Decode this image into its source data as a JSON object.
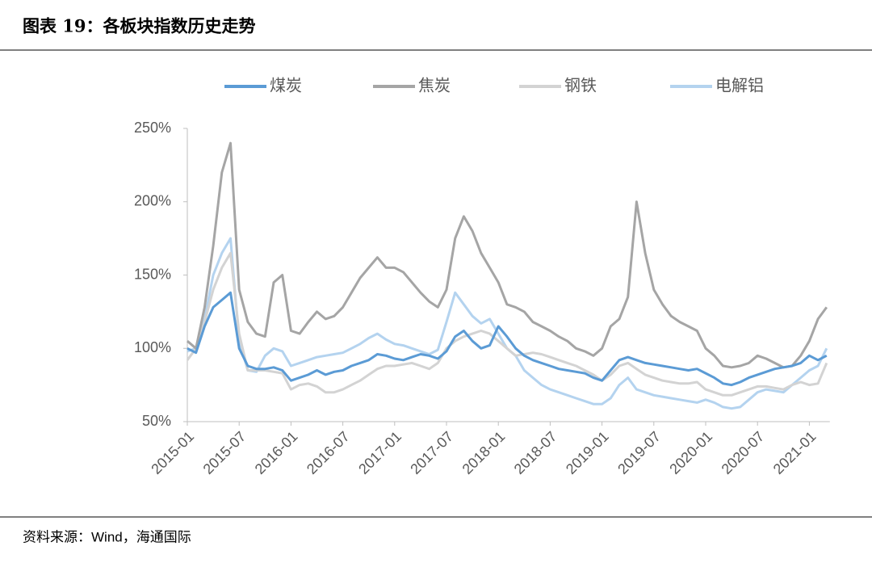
{
  "chart_data": {
    "type": "line",
    "title": "图表 19：各板块指数历史走势",
    "source": "资料来源：Wind，海通国际",
    "categories": [
      "2015-01",
      null,
      null,
      null,
      null,
      null,
      "2015-07",
      null,
      null,
      null,
      null,
      null,
      "2016-01",
      null,
      null,
      null,
      null,
      null,
      "2016-07",
      null,
      null,
      null,
      null,
      null,
      "2017-01",
      null,
      null,
      null,
      null,
      null,
      "2017-07",
      null,
      null,
      null,
      null,
      null,
      "2018-01",
      null,
      null,
      null,
      null,
      null,
      "2018-07",
      null,
      null,
      null,
      null,
      null,
      "2019-01",
      null,
      null,
      null,
      null,
      null,
      "2019-07",
      null,
      null,
      null,
      null,
      null,
      "2020-01",
      null,
      null,
      null,
      null,
      null,
      "2020-07",
      null,
      null,
      null,
      null,
      null,
      "2021-01",
      null,
      null
    ],
    "ylim": [
      50,
      250
    ],
    "yticks": [
      {
        "value": 50,
        "label": "50%"
      },
      {
        "value": 100,
        "label": "100%"
      },
      {
        "value": 150,
        "label": "150%"
      },
      {
        "value": 200,
        "label": "200%"
      },
      {
        "value": 250,
        "label": "250%"
      }
    ],
    "legend": "top",
    "series": [
      {
        "name": "煤炭",
        "color": "#5b9bd5",
        "values": [
          100,
          97,
          115,
          128,
          133,
          138,
          100,
          88,
          86,
          86,
          87,
          85,
          78,
          80,
          82,
          85,
          82,
          84,
          85,
          88,
          90,
          92,
          96,
          95,
          93,
          92,
          94,
          96,
          95,
          93,
          98,
          108,
          112,
          105,
          100,
          102,
          115,
          108,
          100,
          95,
          92,
          90,
          88,
          86,
          85,
          84,
          83,
          80,
          78,
          85,
          92,
          94,
          92,
          90,
          89,
          88,
          87,
          86,
          85,
          86,
          83,
          80,
          76,
          75,
          77,
          80,
          82,
          84,
          86,
          87,
          88,
          90,
          95,
          92,
          95
        ]
      },
      {
        "name": "焦炭",
        "color": "#a5a5a5",
        "values": [
          105,
          100,
          128,
          170,
          220,
          240,
          140,
          118,
          110,
          108,
          145,
          150,
          112,
          110,
          118,
          125,
          120,
          122,
          128,
          138,
          148,
          155,
          162,
          155,
          155,
          152,
          145,
          138,
          132,
          128,
          140,
          175,
          190,
          180,
          165,
          155,
          145,
          130,
          128,
          125,
          118,
          115,
          112,
          108,
          105,
          100,
          98,
          95,
          100,
          115,
          120,
          135,
          200,
          165,
          140,
          130,
          122,
          118,
          115,
          112,
          100,
          95,
          88,
          87,
          88,
          90,
          95,
          93,
          90,
          87,
          88,
          95,
          105,
          120,
          128
        ]
      },
      {
        "name": "钢铁",
        "color": "#d3d3d3",
        "values": [
          92,
          100,
          118,
          140,
          155,
          165,
          110,
          85,
          85,
          85,
          84,
          83,
          72,
          75,
          76,
          74,
          70,
          70,
          72,
          75,
          78,
          82,
          86,
          88,
          88,
          89,
          90,
          88,
          86,
          90,
          100,
          105,
          108,
          110,
          112,
          110,
          105,
          100,
          95,
          96,
          97,
          96,
          94,
          92,
          90,
          88,
          85,
          82,
          78,
          82,
          88,
          90,
          86,
          82,
          80,
          78,
          77,
          76,
          76,
          77,
          72,
          70,
          68,
          68,
          70,
          72,
          74,
          74,
          73,
          72,
          75,
          77,
          75,
          76,
          90
        ]
      },
      {
        "name": "电解铝",
        "color": "#b4d3ef",
        "values": [
          98,
          100,
          120,
          150,
          165,
          175,
          105,
          85,
          84,
          95,
          100,
          98,
          88,
          90,
          92,
          94,
          95,
          96,
          97,
          100,
          103,
          107,
          110,
          106,
          103,
          102,
          100,
          98,
          96,
          99,
          118,
          138,
          130,
          122,
          117,
          120,
          110,
          100,
          95,
          85,
          80,
          75,
          72,
          70,
          68,
          66,
          64,
          62,
          62,
          66,
          75,
          80,
          72,
          70,
          68,
          67,
          66,
          65,
          64,
          63,
          65,
          63,
          60,
          59,
          60,
          65,
          70,
          72,
          71,
          70,
          75,
          80,
          85,
          88,
          100
        ]
      }
    ]
  }
}
